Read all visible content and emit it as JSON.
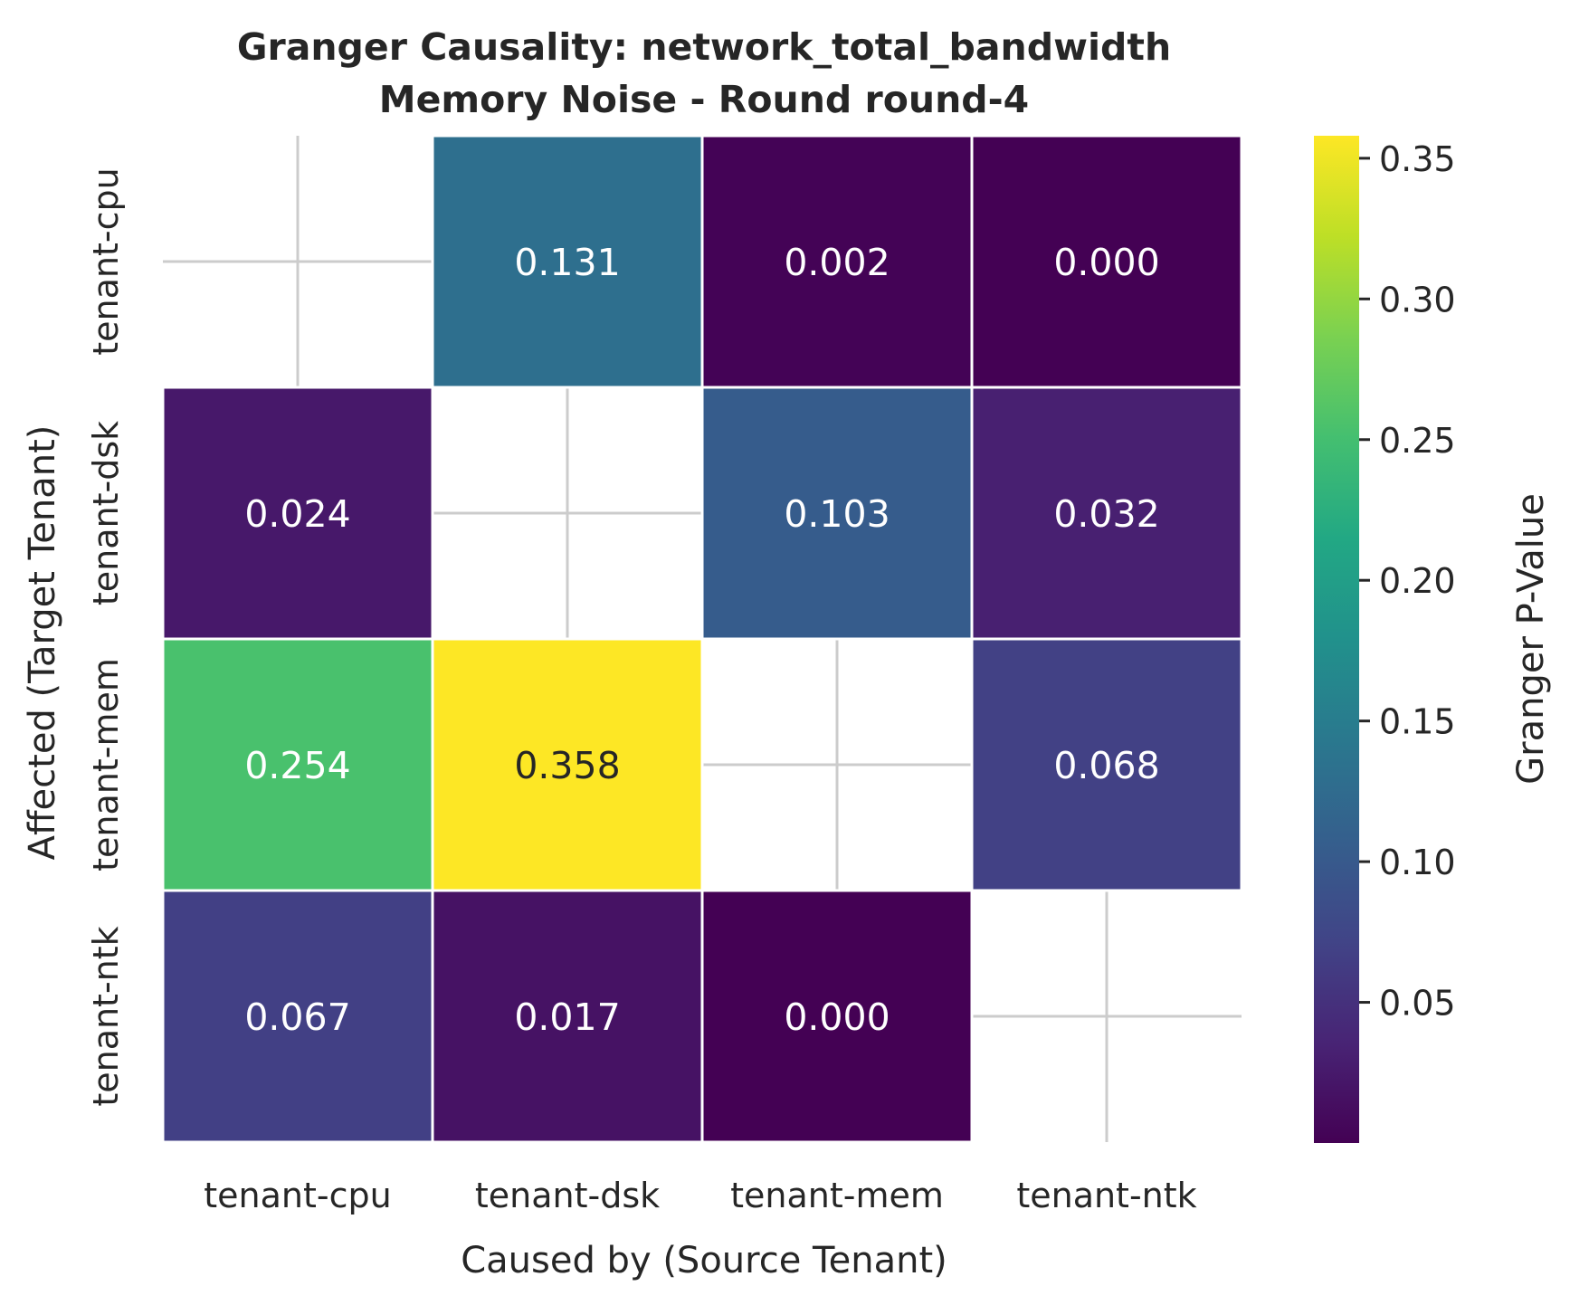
{
  "chart_data": {
    "type": "heatmap",
    "title_line1": "Granger Causality: network_total_bandwidth",
    "title_line2": "Memory Noise - Round round-4",
    "xlabel": "Caused by (Source Tenant)",
    "ylabel": "Affected (Target Tenant)",
    "x_categories": [
      "tenant-cpu",
      "tenant-dsk",
      "tenant-mem",
      "tenant-ntk"
    ],
    "y_categories": [
      "tenant-cpu",
      "tenant-dsk",
      "tenant-mem",
      "tenant-ntk"
    ],
    "values": [
      [
        null,
        0.131,
        0.002,
        0.0
      ],
      [
        0.024,
        null,
        0.103,
        0.032
      ],
      [
        0.254,
        0.358,
        null,
        0.068
      ],
      [
        0.067,
        0.017,
        0.0,
        null
      ]
    ],
    "cell_labels": [
      [
        "",
        "0.131",
        "0.002",
        "0.000"
      ],
      [
        "0.024",
        "",
        "0.103",
        "0.032"
      ],
      [
        "0.254",
        "0.358",
        "",
        "0.068"
      ],
      [
        "0.067",
        "0.017",
        "0.000",
        ""
      ]
    ],
    "colorbar": {
      "label": "Granger P-Value",
      "colormap": "viridis",
      "range": [
        0.0,
        0.358
      ],
      "ticks": [
        0.05,
        0.1,
        0.15,
        0.2,
        0.25,
        0.3,
        0.35
      ],
      "tick_labels": [
        "0.05",
        "0.10",
        "0.15",
        "0.20",
        "0.25",
        "0.30",
        "0.35"
      ]
    },
    "grid": true,
    "legend": "colorbar-right"
  }
}
